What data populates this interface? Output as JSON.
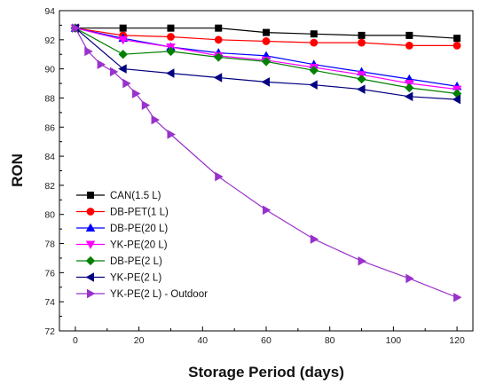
{
  "chart_data": {
    "type": "line",
    "title": "",
    "xlabel": "Storage Period (days)",
    "ylabel": "RON",
    "xlim": [
      -5,
      125
    ],
    "ylim": [
      72,
      94
    ],
    "xticks": [
      0,
      20,
      40,
      60,
      80,
      100,
      120
    ],
    "yticks": [
      72,
      74,
      76,
      78,
      80,
      82,
      84,
      86,
      88,
      90,
      92,
      94
    ],
    "grid": false,
    "legend_position": "bottom-left",
    "series": [
      {
        "name": "CAN(1.5 L)",
        "color": "#000000",
        "marker": "square",
        "x": [
          0,
          15,
          30,
          45,
          60,
          75,
          90,
          105,
          120
        ],
        "y": [
          92.8,
          92.8,
          92.8,
          92.8,
          92.5,
          92.4,
          92.3,
          92.3,
          92.1
        ]
      },
      {
        "name": "DB-PET(1 L)",
        "color": "#ff0000",
        "marker": "circle",
        "x": [
          0,
          15,
          30,
          45,
          60,
          75,
          90,
          105,
          120
        ],
        "y": [
          92.8,
          92.3,
          92.2,
          92.0,
          91.9,
          91.8,
          91.8,
          91.6,
          91.6
        ]
      },
      {
        "name": "DB-PE(20 L)",
        "color": "#0000ff",
        "marker": "triangle-up",
        "x": [
          0,
          15,
          30,
          45,
          60,
          75,
          90,
          105,
          120
        ],
        "y": [
          92.8,
          92.1,
          91.5,
          91.1,
          90.9,
          90.3,
          89.8,
          89.3,
          88.8
        ]
      },
      {
        "name": "YK-PE(20 L)",
        "color": "#ff00ff",
        "marker": "triangle-down",
        "x": [
          0,
          15,
          30,
          45,
          60,
          75,
          90,
          105,
          120
        ],
        "y": [
          92.8,
          92.0,
          91.5,
          90.9,
          90.6,
          90.1,
          89.6,
          89.0,
          88.6
        ]
      },
      {
        "name": "DB-PE(2 L)",
        "color": "#008000",
        "marker": "diamond",
        "x": [
          0,
          15,
          30,
          45,
          60,
          75,
          90,
          105,
          120
        ],
        "y": [
          92.8,
          91.0,
          91.2,
          90.8,
          90.5,
          89.9,
          89.3,
          88.7,
          88.3
        ]
      },
      {
        "name": "YK-PE(2 L)",
        "color": "#000080",
        "marker": "triangle-left",
        "x": [
          0,
          15,
          30,
          45,
          60,
          75,
          90,
          105,
          120
        ],
        "y": [
          92.8,
          90.0,
          89.7,
          89.4,
          89.1,
          88.9,
          88.6,
          88.1,
          87.9
        ]
      },
      {
        "name": "YK-PE(2 L) - Outdoor",
        "color": "#9932cc",
        "marker": "triangle-right",
        "x": [
          0,
          4,
          8,
          12,
          16,
          19,
          22,
          25,
          30,
          45,
          60,
          75,
          90,
          105,
          120
        ],
        "y": [
          92.8,
          91.2,
          90.3,
          89.8,
          89.0,
          88.3,
          87.5,
          86.5,
          85.5,
          82.6,
          80.3,
          78.3,
          76.8,
          75.6,
          74.3
        ]
      }
    ]
  }
}
